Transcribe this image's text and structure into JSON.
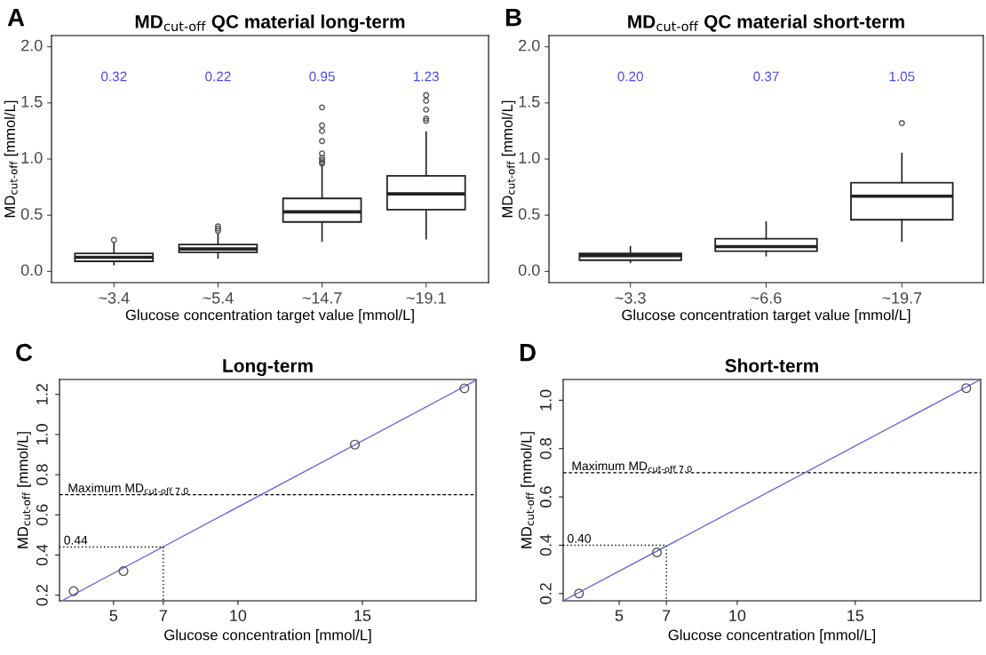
{
  "chart_data": [
    {
      "type": "box",
      "title": "MD$_{cut-off}$ QC material long-term",
      "xlabel": "Glucose concentration target value [mmol/L]",
      "ylabel": "MD$_{cut-off}$ [mmol/L]",
      "categories": [
        "~3.4",
        "~5.4",
        "~14.7",
        "~19.1"
      ],
      "boxes": [
        {
          "low": 0.06,
          "q1": 0.09,
          "median": 0.125,
          "q3": 0.16,
          "high": 0.25,
          "outliers": [
            0.28
          ]
        },
        {
          "low": 0.12,
          "q1": 0.17,
          "median": 0.2,
          "q3": 0.24,
          "high": 0.34,
          "outliers": [
            0.36,
            0.38,
            0.4
          ]
        },
        {
          "low": 0.27,
          "q1": 0.44,
          "median": 0.53,
          "q3": 0.65,
          "high": 0.95,
          "outliers": [
            0.96,
            0.97,
            0.99,
            1.01,
            1.05,
            1.16,
            1.25,
            1.3,
            1.46
          ]
        },
        {
          "low": 0.29,
          "q1": 0.55,
          "median": 0.69,
          "q3": 0.85,
          "high": 1.24,
          "outliers": [
            1.34,
            1.36,
            1.44,
            1.52,
            1.57
          ]
        }
      ],
      "ylim": [
        -0.1,
        2.1
      ],
      "yticks": [
        {
          "value": 0,
          "label": "0.0"
        },
        0.5,
        {
          "value": 1,
          "label": "1.0"
        },
        1.5,
        {
          "value": 2,
          "label": "2.0"
        }
      ],
      "annotations": [
        "A",
        "0.32",
        "0.22",
        "0.95",
        "1.23"
      ]
    },
    {
      "type": "box",
      "title": "MD$_{cut-off}$ QC material short-term",
      "xlabel": "Glucose concentration target value [mmol/L]",
      "ylabel": "MD$_{cut-off}$ [mmol/L]",
      "categories": [
        "~3.3",
        "~6.6",
        "~19.7"
      ],
      "boxes": [
        {
          "low": 0.08,
          "q1": 0.1,
          "median": 0.14,
          "q3": 0.16,
          "high": 0.22
        },
        {
          "low": 0.14,
          "q1": 0.18,
          "median": 0.22,
          "q3": 0.29,
          "high": 0.44
        },
        {
          "low": 0.27,
          "q1": 0.46,
          "median": 0.67,
          "q3": 0.79,
          "high": 1.05,
          "outliers": [
            1.32
          ]
        }
      ],
      "ylim": [
        -0.1,
        2.1
      ],
      "yticks": [
        {
          "value": 0,
          "label": "0.0"
        },
        0.5,
        {
          "value": 1,
          "label": "1.0"
        },
        1.5,
        {
          "value": 2,
          "label": "2.0"
        }
      ],
      "annotations": [
        "B",
        "0.20",
        "0.37",
        "1.05"
      ]
    },
    {
      "type": "scatter",
      "title": "Long-term",
      "xlabel": "Glucose concentration [mmol/L]",
      "ylabel": "MD$_{cut-off}$ [mmol/L]",
      "series": [
        {
          "type": "scatter",
          "marker": "circle",
          "color": "#555555",
          "x": [
            3.4,
            5.4,
            14.7,
            19.1
          ],
          "values": [
            0.22,
            0.32,
            0.95,
            1.23
          ]
        },
        {
          "type": "line",
          "color": "#6a6ade",
          "x": [
            2.92,
            19.57
          ],
          "values": [
            0.172,
            1.27
          ]
        },
        {
          "type": "line",
          "color": "#000000",
          "line_style": "dotted",
          "x": [
            2.83,
            7,
            7
          ],
          "values": [
            0.44,
            0.44,
            0.172
          ]
        }
      ],
      "xlim": [
        2.83,
        19.57
      ],
      "ylim": [
        0.172,
        1.274
      ],
      "xticks": [
        5,
        7,
        10,
        15
      ],
      "yticks": [
        0.2,
        0.4,
        0.6,
        0.8,
        {
          "value": 1,
          "label": "1.0"
        },
        1.2
      ],
      "ref_lines": [
        {
          "axis": "y",
          "value": 0.7,
          "label": "Maximum MD$_{cut-off 7.0}$",
          "color": "#000000",
          "line_style": "dashed"
        }
      ],
      "annotations": [
        "C",
        {
          "text": "0.44",
          "x": 3.0,
          "y": 0.44
        }
      ]
    },
    {
      "type": "scatter",
      "title": "Short-term",
      "xlabel": "Glucose concentration [mmol/L]",
      "ylabel": "MD$_{cut-off}$ [mmol/L]",
      "series": [
        {
          "type": "scatter",
          "marker": "circle",
          "color": "#555555",
          "x": [
            3.3,
            6.6,
            19.7
          ],
          "values": [
            0.2,
            0.37,
            1.05
          ]
        },
        {
          "type": "line",
          "color": "#6a6ade",
          "x": [
            2.63,
            20.31
          ],
          "values": [
            0.17,
            1.086
          ]
        },
        {
          "type": "line",
          "color": "#000000",
          "line_style": "dotted",
          "x": [
            2.63,
            7,
            7
          ],
          "values": [
            0.4,
            0.4,
            0.17
          ]
        }
      ],
      "xlim": [
        2.63,
        20.31
      ],
      "ylim": [
        0.17,
        1.086
      ],
      "xticks": [
        5,
        7,
        10,
        15
      ],
      "yticks": [
        0.2,
        0.4,
        0.6,
        0.8,
        {
          "value": 1,
          "label": "1.0"
        }
      ],
      "ref_lines": [
        {
          "axis": "y",
          "value": 0.7,
          "label": "Maximum MD$_{cut-off 7.0}$",
          "color": "#000000",
          "line_style": "dashed"
        }
      ],
      "annotations": [
        "D",
        {
          "text": "0.40",
          "x": 2.8,
          "y": 0.4
        }
      ]
    }
  ]
}
